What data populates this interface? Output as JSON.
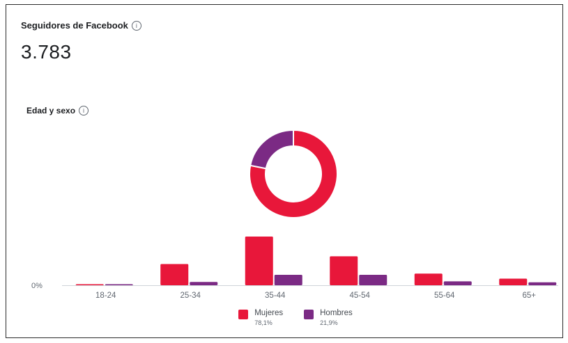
{
  "header": {
    "title": "Seguidores de Facebook",
    "info_icon": "info-icon",
    "total_value": "3.783"
  },
  "section": {
    "title": "Edad y sexo",
    "info_icon": "info-icon"
  },
  "colors": {
    "mujeres": "#e8173a",
    "hombres": "#7b2a84",
    "axis": "#cfd3d8",
    "tick_text": "#606770"
  },
  "chart_data": [
    {
      "type": "pie",
      "variant": "donut",
      "slices": [
        {
          "label": "Mujeres",
          "value": 78.1
        },
        {
          "label": "Hombres",
          "value": 21.9
        }
      ]
    },
    {
      "type": "bar",
      "categories": [
        "18-24",
        "25-34",
        "35-44",
        "45-54",
        "55-64",
        "65+"
      ],
      "series": [
        {
          "name": "Mujeres",
          "values": [
            0.3,
            7.1,
            16.3,
            9.7,
            3.9,
            2.2
          ]
        },
        {
          "name": "Hombres",
          "values": [
            0.3,
            1.1,
            3.5,
            3.5,
            1.3,
            1.0
          ]
        }
      ],
      "y_tick_label": "0%",
      "ylim": [
        0,
        17
      ],
      "grid": false,
      "legend_placement": "bottom"
    }
  ],
  "legend": [
    {
      "name": "Mujeres",
      "pct": "78,1%"
    },
    {
      "name": "Hombres",
      "pct": "21,9%"
    }
  ]
}
